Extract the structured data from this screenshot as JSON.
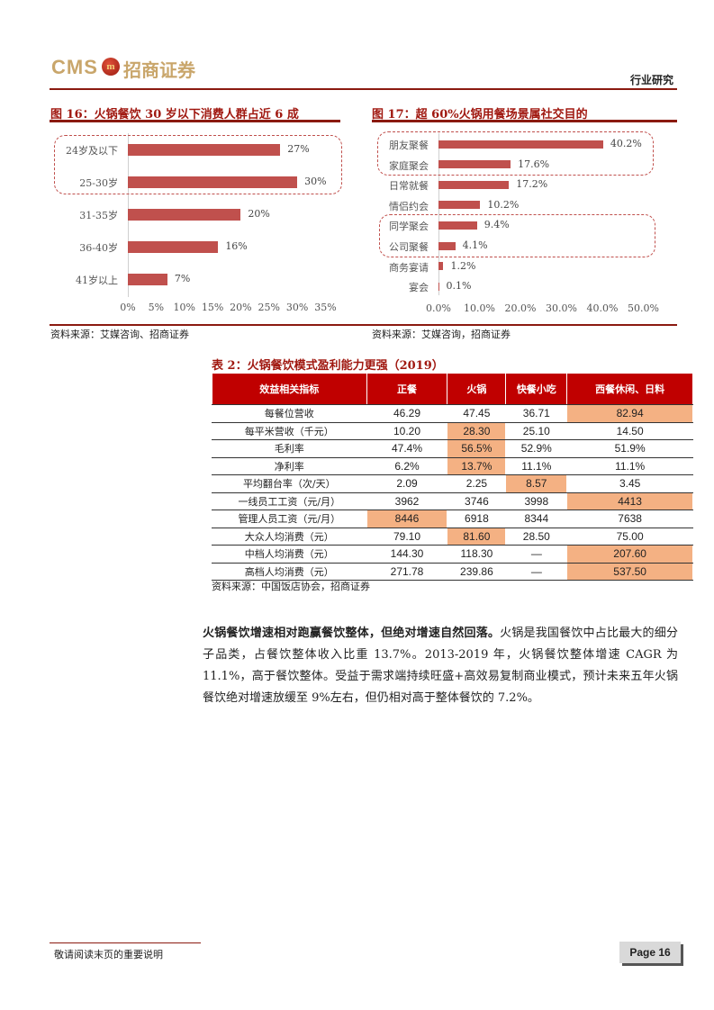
{
  "header": {
    "logo_text": "CMS",
    "logo_badge": "m",
    "logo_cn": "招商证券",
    "section": "行业研究"
  },
  "colors": {
    "accent": "#8b1a10",
    "bar": "#c0504d",
    "header_fill": "#c00000",
    "highlight": "#f4b183"
  },
  "figure16": {
    "title": "图 16：火锅餐饮 30 岁以下消费人群占近 6 成",
    "source": "资料来源：艾媒咨询、招商证券"
  },
  "figure17": {
    "title": "图 17：超 60%火锅用餐场景属社交目的",
    "source": "资料来源：艾媒咨询，招商证券"
  },
  "chart_data": [
    {
      "type": "bar",
      "orientation": "horizontal",
      "categories": [
        "24岁及以下",
        "25-30岁",
        "31-35岁",
        "36-40岁",
        "41岁以上"
      ],
      "values": [
        27,
        30,
        20,
        16,
        7
      ],
      "value_labels": [
        "27%",
        "30%",
        "20%",
        "16%",
        "7%"
      ],
      "xlim": [
        0,
        35
      ],
      "ticks": [
        "0%",
        "5%",
        "10%",
        "15%",
        "20%",
        "25%",
        "30%",
        "35%"
      ],
      "highlighted_groups": [
        [
          0,
          1
        ]
      ],
      "grid": false
    },
    {
      "type": "bar",
      "orientation": "horizontal",
      "categories": [
        "朋友聚餐",
        "家庭聚会",
        "日常就餐",
        "情侣约会",
        "同学聚会",
        "公司聚餐",
        "商务宴请",
        "宴会"
      ],
      "values": [
        40.2,
        17.6,
        17.2,
        10.2,
        9.4,
        4.1,
        1.2,
        0.1
      ],
      "value_labels": [
        "40.2%",
        "17.6%",
        "17.2%",
        "10.2%",
        "9.4%",
        "4.1%",
        "1.2%",
        "0.1%"
      ],
      "xlim": [
        0,
        50
      ],
      "ticks": [
        "0.0%",
        "10.0%",
        "20.0%",
        "30.0%",
        "40.0%",
        "50.0%"
      ],
      "highlighted_groups": [
        [
          0,
          1
        ],
        [
          4,
          5
        ]
      ],
      "grid": false
    }
  ],
  "table2": {
    "title": "表 2：火锅餐饮模式盈利能力更强（2019）",
    "headers": [
      "效益相关指标",
      "正餐",
      "火锅",
      "快餐小吃",
      "西餐休闲、日料"
    ],
    "rows": [
      {
        "cells": [
          "每餐位营收",
          "46.29",
          "47.45",
          "36.71",
          "82.94"
        ],
        "highlight": [
          4
        ]
      },
      {
        "cells": [
          "每平米营收（千元）",
          "10.20",
          "28.30",
          "25.10",
          "14.50"
        ],
        "highlight": [
          2
        ]
      },
      {
        "cells": [
          "毛利率",
          "47.4%",
          "56.5%",
          "52.9%",
          "51.9%"
        ],
        "highlight": [
          2
        ]
      },
      {
        "cells": [
          "净利率",
          "6.2%",
          "13.7%",
          "11.1%",
          "11.1%"
        ],
        "highlight": [
          2
        ]
      },
      {
        "cells": [
          "平均翻台率（次/天）",
          "2.09",
          "2.25",
          "8.57",
          "3.45"
        ],
        "highlight": [
          3
        ]
      },
      {
        "cells": [
          "一线员工工资（元/月）",
          "3962",
          "3746",
          "3998",
          "4413"
        ],
        "highlight": [
          4
        ]
      },
      {
        "cells": [
          "管理人员工资（元/月）",
          "8446",
          "6918",
          "8344",
          "7638"
        ],
        "highlight": [
          1
        ]
      },
      {
        "cells": [
          "大众人均消费（元）",
          "79.10",
          "81.60",
          "28.50",
          "75.00"
        ],
        "highlight": [
          2
        ]
      },
      {
        "cells": [
          "中档人均消费（元）",
          "144.30",
          "118.30",
          "—",
          "207.60"
        ],
        "highlight": [
          4
        ]
      },
      {
        "cells": [
          "高档人均消费（元）",
          "271.78",
          "239.86",
          "—",
          "537.50"
        ],
        "highlight": [
          4
        ]
      }
    ],
    "source": "资料来源：中国饭店协会，招商证券"
  },
  "paragraph": {
    "bold": "火锅餐饮增速相对跑赢餐饮整体，但绝对增速自然回落。",
    "text": "火锅是我国餐饮中占比最大的细分子品类，占餐饮整体收入比重 13.7%。2013-2019 年，火锅餐饮整体增速 CAGR 为 11.1%，高于餐饮整体。受益于需求端持续旺盛+高效易复制商业模式，预计未来五年火锅餐饮绝对增速放缓至 9%左右，但仍相对高于整体餐饮的 7.2%。"
  },
  "footer": {
    "notice": "敬请阅读末页的重要说明",
    "page": "Page 16"
  }
}
